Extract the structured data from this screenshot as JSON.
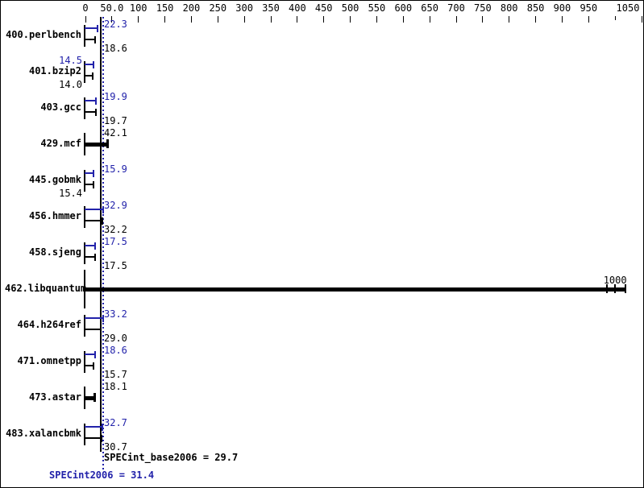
{
  "colors": {
    "blue": "#2222aa",
    "black": "#000000",
    "background": "#ffffff"
  },
  "chart_data": {
    "type": "bar",
    "orientation": "horizontal",
    "title": "",
    "x_axis": {
      "min": 0,
      "max": 1050,
      "tick_interval": 50,
      "grid": false,
      "ticks": [
        {
          "value": 0,
          "label": "0"
        },
        {
          "value": 50,
          "label": "50.0"
        },
        {
          "value": 100,
          "label": "100"
        },
        {
          "value": 150,
          "label": "150"
        },
        {
          "value": 200,
          "label": "200"
        },
        {
          "value": 250,
          "label": "250"
        },
        {
          "value": 300,
          "label": "300"
        },
        {
          "value": 350,
          "label": "350"
        },
        {
          "value": 400,
          "label": "400"
        },
        {
          "value": 450,
          "label": "450"
        },
        {
          "value": 500,
          "label": "500"
        },
        {
          "value": 550,
          "label": "550"
        },
        {
          "value": 600,
          "label": "600"
        },
        {
          "value": 650,
          "label": "650"
        },
        {
          "value": 700,
          "label": "700"
        },
        {
          "value": 750,
          "label": "750"
        },
        {
          "value": 800,
          "label": "800"
        },
        {
          "value": 850,
          "label": "850"
        },
        {
          "value": 900,
          "label": "900"
        },
        {
          "value": 950,
          "label": "950"
        },
        {
          "value": 1000,
          "label": ""
        },
        {
          "value": 1050,
          "label": "1050"
        }
      ]
    },
    "benchmarks": [
      {
        "name": "400.perlbench",
        "style": "dual",
        "peak": 22.3,
        "peak_label": "22.3",
        "peak_label_side": "right",
        "base": 18.6,
        "base_label": "18.6",
        "base_label_side": "right"
      },
      {
        "name": "401.bzip2",
        "style": "dual",
        "peak": 14.5,
        "peak_label": "14.5",
        "peak_label_side": "left",
        "base": 14.0,
        "base_label": "14.0",
        "base_label_side": "left"
      },
      {
        "name": "403.gcc",
        "style": "dual",
        "peak": 19.9,
        "peak_label": "19.9",
        "peak_label_side": "right",
        "base": 19.7,
        "base_label": "19.7",
        "base_label_side": "right"
      },
      {
        "name": "429.mcf",
        "style": "single",
        "value": 42.1,
        "label": "42.1"
      },
      {
        "name": "445.gobmk",
        "style": "dual",
        "peak": 15.9,
        "peak_label": "15.9",
        "peak_label_side": "right",
        "base": 15.4,
        "base_label": "15.4",
        "base_label_side": "left"
      },
      {
        "name": "456.hmmer",
        "style": "dual",
        "peak": 32.9,
        "peak_label": "32.9",
        "peak_label_side": "right",
        "base": 32.2,
        "base_label": "32.2",
        "base_label_side": "right"
      },
      {
        "name": "458.sjeng",
        "style": "dual",
        "peak": 17.5,
        "peak_label": "17.5",
        "peak_label_side": "right",
        "base": 17.5,
        "base_label": "17.5",
        "base_label_side": "right"
      },
      {
        "name": "462.libquantum",
        "style": "overflow",
        "label": "1000",
        "label_value": 1000,
        "bar_end": 1020,
        "run_ticks": [
          985,
          1000,
          1020
        ]
      },
      {
        "name": "464.h264ref",
        "style": "dual",
        "peak": 33.2,
        "peak_label": "33.2",
        "peak_label_side": "right",
        "base": 29.0,
        "base_label": "29.0",
        "base_label_side": "right"
      },
      {
        "name": "471.omnetpp",
        "style": "dual",
        "peak": 18.6,
        "peak_label": "18.6",
        "peak_label_side": "right",
        "base": 15.7,
        "base_label": "15.7",
        "base_label_side": "right"
      },
      {
        "name": "473.astar",
        "style": "single",
        "value": 18.1,
        "label": "18.1"
      },
      {
        "name": "483.xalancbmk",
        "style": "dual",
        "peak": 32.7,
        "peak_label": "32.7",
        "peak_label_side": "right",
        "base": 30.7,
        "base_label": "30.7",
        "base_label_side": "right"
      }
    ],
    "reference_lines": [
      {
        "value": 29.7,
        "line_style": "solid",
        "color": "#000000",
        "meaning": "SPECint_base2006"
      },
      {
        "value": 31.4,
        "line_style": "dotted",
        "color": "#2222aa",
        "meaning": "SPECint2006"
      }
    ],
    "summary": {
      "base_text": "SPECint_base2006 = 29.7",
      "peak_text": "SPECint2006 = 31.4"
    }
  }
}
